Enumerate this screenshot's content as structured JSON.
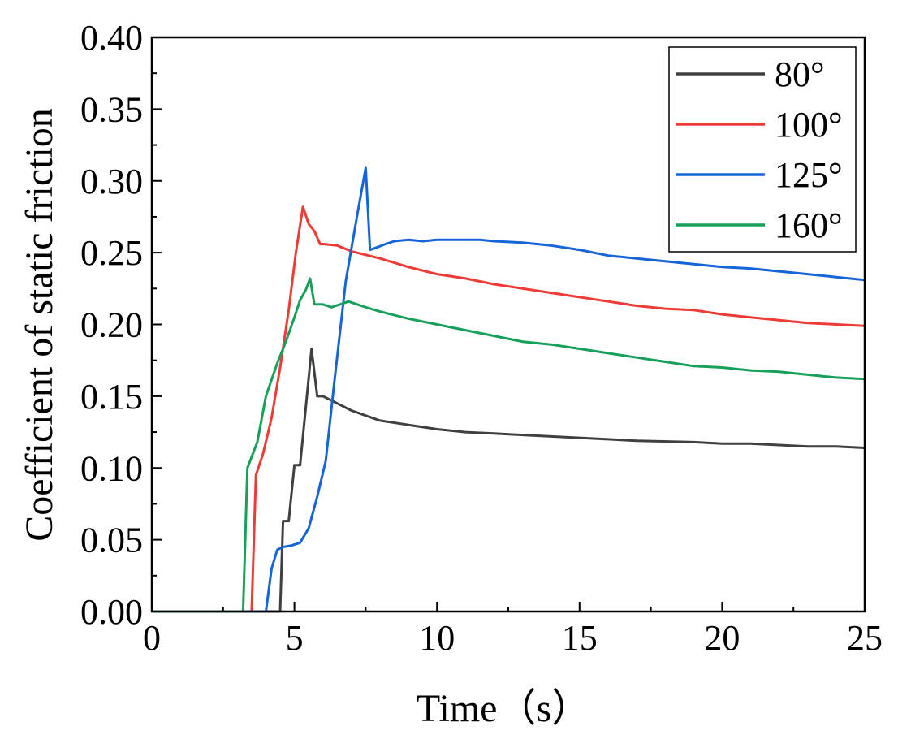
{
  "chart_data": {
    "type": "line",
    "title": "",
    "xlabel": "Time（s）",
    "ylabel": "Coefficient of static friction",
    "xlim": [
      0,
      25
    ],
    "ylim": [
      0,
      0.4
    ],
    "xticks": [
      0,
      5,
      10,
      15,
      20,
      25
    ],
    "xtick_labels": [
      "0",
      "5",
      "10",
      "15",
      "20",
      "25"
    ],
    "yticks": [
      0,
      0.05,
      0.1,
      0.15,
      0.2,
      0.25,
      0.3,
      0.35,
      0.4
    ],
    "ytick_labels": [
      "0.00",
      "0.05",
      "0.10",
      "0.15",
      "0.20",
      "0.25",
      "0.30",
      "0.35",
      "0.40"
    ],
    "grid": false,
    "legend_position": "top-right",
    "series": [
      {
        "name": "80°",
        "color": "#404040",
        "x": [
          0,
          4.4,
          4.5,
          4.6,
          4.8,
          5.0,
          5.2,
          5.4,
          5.6,
          5.8,
          6.0,
          6.5,
          7,
          8,
          9,
          10,
          11,
          12,
          13,
          15,
          17,
          19,
          20,
          21,
          22,
          23,
          24,
          25
        ],
        "y": [
          0,
          0,
          0.0,
          0.063,
          0.063,
          0.102,
          0.102,
          0.142,
          0.183,
          0.15,
          0.15,
          0.145,
          0.14,
          0.133,
          0.13,
          0.127,
          0.125,
          0.124,
          0.123,
          0.121,
          0.119,
          0.118,
          0.117,
          0.117,
          0.116,
          0.115,
          0.115,
          0.114
        ]
      },
      {
        "name": "100°",
        "color": "#ef3b36",
        "x": [
          0,
          3.5,
          3.65,
          3.9,
          4.2,
          4.5,
          4.8,
          5.05,
          5.3,
          5.5,
          5.7,
          5.9,
          6.0,
          6.5,
          7,
          8,
          9,
          10,
          11,
          12,
          13,
          14,
          15,
          16,
          17,
          18,
          19,
          20,
          21,
          22,
          23,
          24,
          25
        ],
        "y": [
          0,
          0,
          0.095,
          0.11,
          0.135,
          0.17,
          0.21,
          0.25,
          0.282,
          0.27,
          0.265,
          0.256,
          0.256,
          0.255,
          0.251,
          0.246,
          0.24,
          0.235,
          0.232,
          0.228,
          0.225,
          0.222,
          0.219,
          0.216,
          0.213,
          0.211,
          0.21,
          0.207,
          0.205,
          0.203,
          0.201,
          0.2,
          0.199
        ]
      },
      {
        "name": "125°",
        "color": "#1565d8",
        "x": [
          0,
          4.0,
          4.2,
          4.4,
          4.6,
          4.9,
          5.2,
          5.5,
          5.8,
          6.1,
          6.4,
          6.8,
          7.2,
          7.5,
          7.65,
          7.8,
          8.2,
          8.5,
          9,
          9.5,
          10,
          11,
          11.5,
          12,
          13,
          14,
          15,
          16,
          17,
          18,
          19,
          20,
          21,
          22,
          23,
          24,
          25
        ],
        "y": [
          0,
          0,
          0.03,
          0.043,
          0.045,
          0.046,
          0.048,
          0.058,
          0.08,
          0.105,
          0.16,
          0.23,
          0.276,
          0.309,
          0.252,
          0.253,
          0.256,
          0.258,
          0.259,
          0.258,
          0.259,
          0.259,
          0.259,
          0.258,
          0.257,
          0.255,
          0.252,
          0.248,
          0.246,
          0.244,
          0.242,
          0.24,
          0.239,
          0.237,
          0.235,
          0.233,
          0.231
        ]
      },
      {
        "name": "160°",
        "color": "#17a05a",
        "x": [
          0,
          3.2,
          3.35,
          3.7,
          4.0,
          4.4,
          4.7,
          5.0,
          5.2,
          5.4,
          5.55,
          5.7,
          6.0,
          6.3,
          6.6,
          6.9,
          7.2,
          7.5,
          8,
          9,
          10,
          11,
          12,
          13,
          14,
          15,
          16,
          17,
          18,
          19,
          20,
          21,
          22,
          23,
          24,
          25
        ],
        "y": [
          0,
          0,
          0.1,
          0.118,
          0.15,
          0.173,
          0.188,
          0.205,
          0.217,
          0.224,
          0.232,
          0.214,
          0.214,
          0.212,
          0.214,
          0.216,
          0.214,
          0.212,
          0.209,
          0.204,
          0.2,
          0.196,
          0.192,
          0.188,
          0.186,
          0.183,
          0.18,
          0.177,
          0.174,
          0.171,
          0.17,
          0.168,
          0.167,
          0.165,
          0.163,
          0.162
        ]
      }
    ]
  }
}
